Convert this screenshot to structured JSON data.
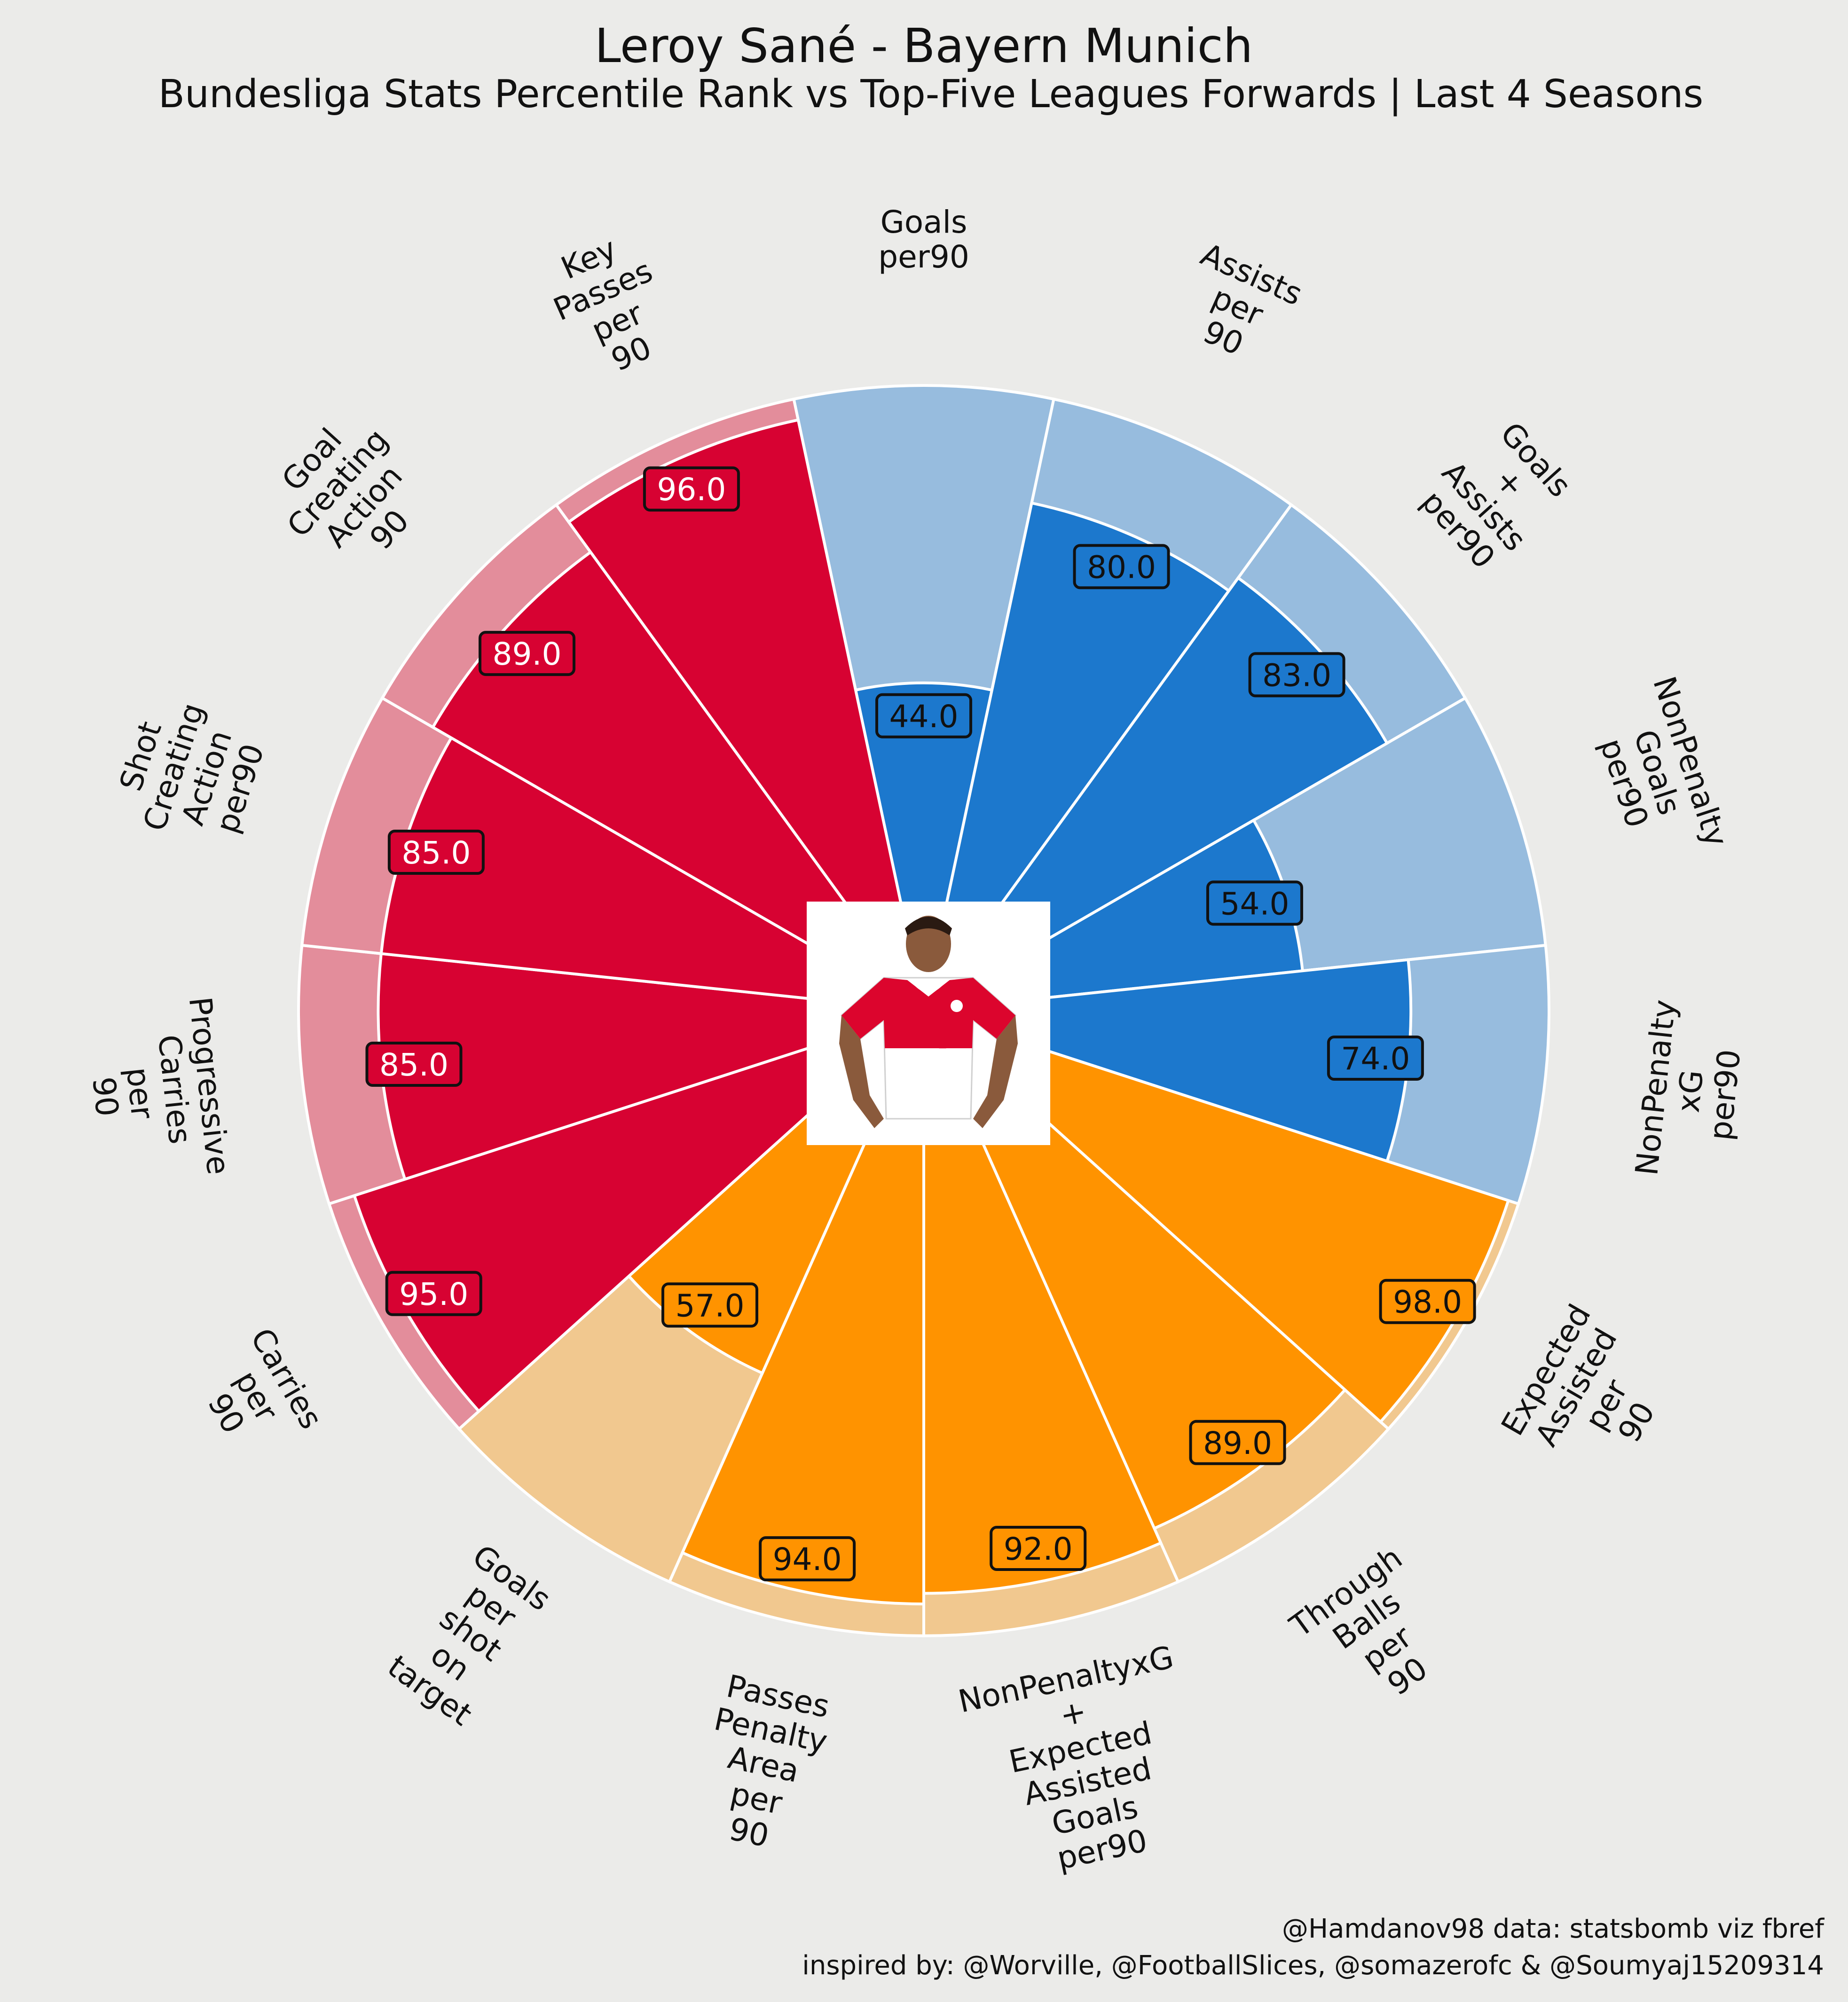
{
  "page": {
    "title": "Leroy Sané - Bayern Munich",
    "subtitle": "Bundesliga Stats Percentile Rank vs Top-Five Leagues Forwards | Last 4 Seasons",
    "credit_line1": "@Hamdanov98 data: statsbomb viz fbref",
    "credit_line2": "inspired by: @Worville, @FootballSlices, @somazerofc & @Soumyaj15209314",
    "player_photo": "player-photo-icon"
  },
  "chart_data": {
    "type": "bar",
    "polar": true,
    "title": "Leroy Sané - Bayern Munich",
    "subtitle": "Bundesliga Stats Percentile Rank vs Top-Five Leagues Forwards | Last 4 Seasons",
    "range": [
      0,
      100
    ],
    "colors": {
      "background": "#ebebe9",
      "attacking": "#1c78cd",
      "attacking_bg": "#97bcde",
      "possession": "#d70232",
      "possession_bg": "#e38d9b",
      "passing": "#ff9300",
      "passing_bg": "#f1c88f",
      "label_edge": "#111111",
      "slice_edge": "#ffffff"
    },
    "categories": [
      "Goals\nper90",
      "Assists\nper\n90",
      "Goals\n+\nAssists\nper90",
      "NonPenalty\nGoals\nper90",
      "NonPenalty\nxG\nper90",
      "Expected\nAssisted\nper\n90",
      "Through\nBalls\nper\n90",
      "NonPenaltyxG\n+\nExpected\nAssisted\nGoals\nper90",
      "Passes\nPenalty\nArea\nper\n90",
      "Goals\nper\nshot\non\ntarget",
      "Carries\nper\n90",
      "Progressive\nCarries\nper\n90",
      "Shot\nCreating\nAction\nper90",
      "Goal\nCreating\nAction\n90",
      "Key\nPasses\nper\n90"
    ],
    "values": [
      44.0,
      80.0,
      83.0,
      54.0,
      74.0,
      98.0,
      89.0,
      92.0,
      94.0,
      57.0,
      95.0,
      85.0,
      85.0,
      89.0,
      96.0
    ],
    "value_labels": [
      "44.0",
      "80.0",
      "83.0",
      "54.0",
      "74.0",
      "98.0",
      "89.0",
      "92.0",
      "94.0",
      "57.0",
      "95.0",
      "85.0",
      "85.0",
      "89.0",
      "96.0"
    ],
    "groups": [
      "attacking",
      "attacking",
      "attacking",
      "attacking",
      "attacking",
      "passing",
      "passing",
      "passing",
      "passing",
      "passing",
      "possession",
      "possession",
      "possession",
      "possession",
      "possession"
    ]
  }
}
